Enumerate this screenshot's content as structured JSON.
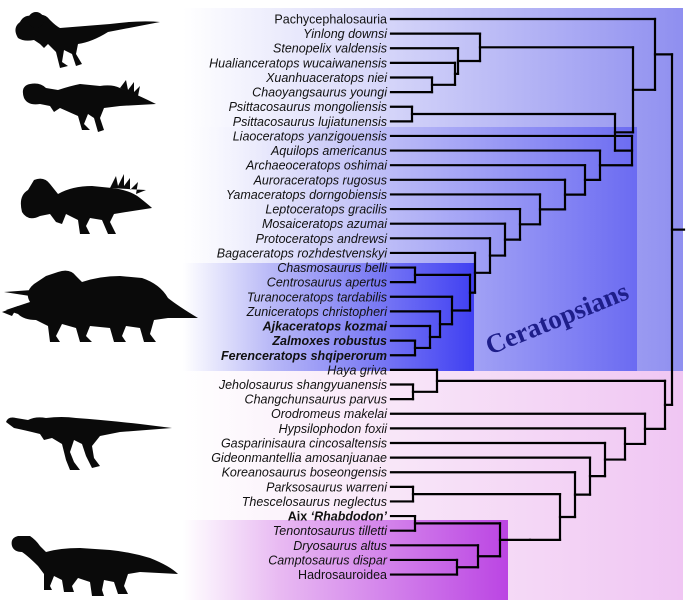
{
  "clade_label": "Ceratopsians",
  "colors": {
    "ceratopsia_bg": "#8f8ff0",
    "neoceratopsia_bg": "#6b6bf2",
    "centro_bg": "#4646f4",
    "ornithopoda_bg": "#f0c6f3",
    "rhabdo_bg": "#c14de6",
    "line": "#000000"
  },
  "taxa": [
    {
      "name": "Pachycephalosauria",
      "style": "plain"
    },
    {
      "name": "Yinlong downsi",
      "style": "italic"
    },
    {
      "name": "Stenopelix valdensis",
      "style": "italic"
    },
    {
      "name": "Hualianceratops wucaiwanensis",
      "style": "italic"
    },
    {
      "name": "Xuanhuaceratops niei",
      "style": "italic"
    },
    {
      "name": "Chaoyangsaurus youngi",
      "style": "italic"
    },
    {
      "name": "Psittacosaurus mongoliensis",
      "style": "italic"
    },
    {
      "name": "Psittacosaurus lujiatunensis",
      "style": "italic"
    },
    {
      "name": "Liaoceratops yanzigouensis",
      "style": "italic"
    },
    {
      "name": "Aquilops americanus",
      "style": "italic"
    },
    {
      "name": "Archaeoceratops oshimai",
      "style": "italic"
    },
    {
      "name": "Auroraceratops rugosus",
      "style": "italic"
    },
    {
      "name": "Yamaceratops dorngobiensis",
      "style": "italic"
    },
    {
      "name": "Leptoceratops gracilis",
      "style": "italic"
    },
    {
      "name": "Mosaiceratops azumai",
      "style": "italic"
    },
    {
      "name": "Protoceratops andrewsi",
      "style": "italic"
    },
    {
      "name": "Bagaceratops rozhdestvenskyi",
      "style": "italic"
    },
    {
      "name": "Chasmosaurus belli",
      "style": "italic"
    },
    {
      "name": "Centrosaurus apertus",
      "style": "italic"
    },
    {
      "name": "Turanoceratops tardabilis",
      "style": "italic"
    },
    {
      "name": "Zuniceratops christopheri",
      "style": "italic"
    },
    {
      "name": "Ajkaceratops kozmai",
      "style": "bold-italic"
    },
    {
      "name": "Zalmoxes robustus",
      "style": "bold-italic"
    },
    {
      "name": "Ferenceratops shqiperorum",
      "style": "bold-italic"
    },
    {
      "name": "Haya griva",
      "style": "italic"
    },
    {
      "name": "Jeholosaurus shangyuanensis",
      "style": "italic"
    },
    {
      "name": "Changchunsaurus parvus",
      "style": "italic"
    },
    {
      "name": "Orodromeus makelai",
      "style": "italic"
    },
    {
      "name": "Hypsilophodon foxii",
      "style": "italic"
    },
    {
      "name": "Gasparinisaura cincosaltensis",
      "style": "italic"
    },
    {
      "name": "Gideonmantellia amosanjuanae",
      "style": "italic"
    },
    {
      "name": "Koreanosaurus boseongensis",
      "style": "italic"
    },
    {
      "name": "Parksosaurus warreni",
      "style": "italic"
    },
    {
      "name": "Thescelosaurus neglectus",
      "style": "italic"
    },
    {
      "name": "Aix ‘Rhabdodon’",
      "style": "aix"
    },
    {
      "name": "Tenontosaurus tilletti",
      "style": "italic"
    },
    {
      "name": "Dryosaurus altus",
      "style": "italic"
    },
    {
      "name": "Camptosaurus dispar",
      "style": "italic"
    },
    {
      "name": "Hadrosauroidea",
      "style": "plain"
    }
  ],
  "silhouettes": [
    "pachycephalosaur-silhouette",
    "psittacosaur-silhouette",
    "protoceratopsid-silhouette",
    "ceratopsid-silhouette",
    "hypsilophodont-silhouette",
    "iguanodont-silhouette"
  ]
}
